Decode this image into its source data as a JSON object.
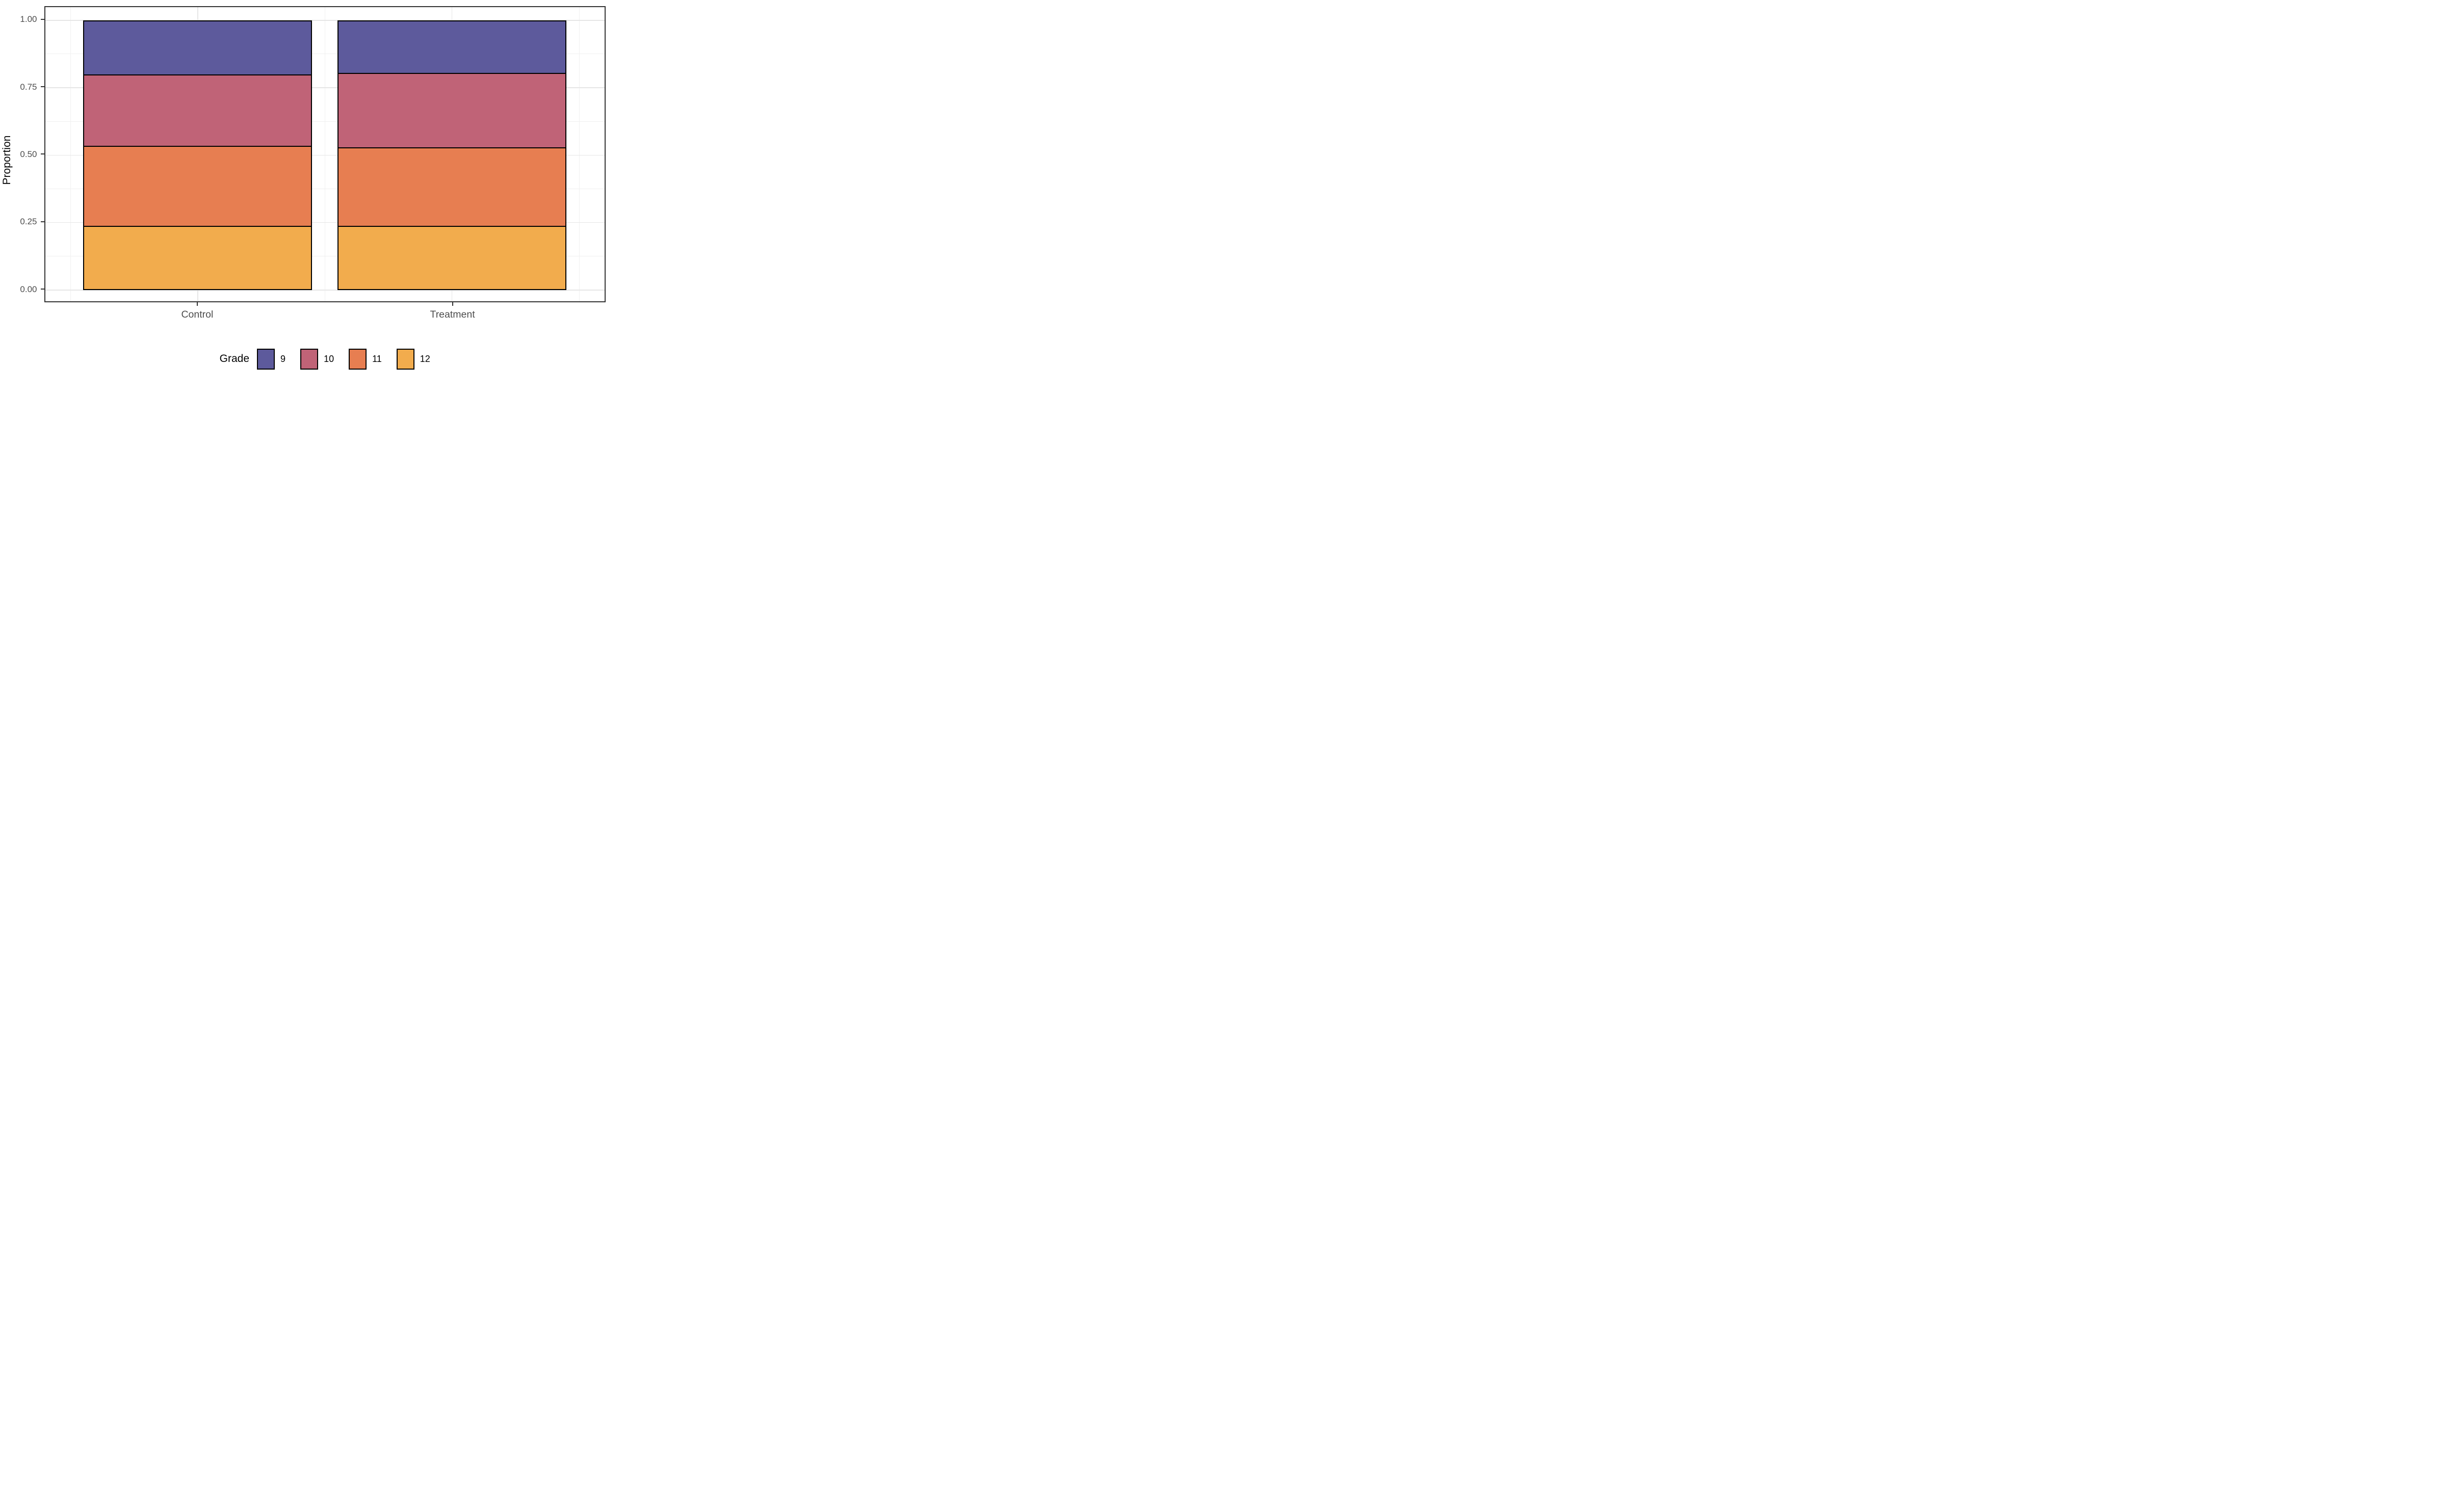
{
  "chart_data": {
    "type": "bar",
    "subtype": "stacked-proportion",
    "categories": [
      "Control",
      "Treatment"
    ],
    "series": [
      {
        "name": "9",
        "color": "#5D5A9C",
        "values": [
          0.203,
          0.197
        ]
      },
      {
        "name": "10",
        "color": "#C06377",
        "values": [
          0.264,
          0.276
        ]
      },
      {
        "name": "11",
        "color": "#E77E51",
        "values": [
          0.297,
          0.291
        ]
      },
      {
        "name": "12",
        "color": "#F2AC4D",
        "values": [
          0.236,
          0.236
        ]
      }
    ],
    "stack_order_top_to_bottom": [
      "9",
      "10",
      "11",
      "12"
    ],
    "title": "",
    "xlabel": "",
    "ylabel": "Proportion",
    "ylim": [
      0,
      1
    ],
    "y_major_ticks": [
      1.0,
      0.75,
      0.5,
      0.25,
      0.0
    ],
    "y_minor_ticks": [
      0.875,
      0.625,
      0.375,
      0.125
    ],
    "grid": "major and minor, light gray, on white panel with dark border",
    "bar_outline_color": "#000000",
    "legend_position": "bottom"
  },
  "axes": {
    "y_title": "Proportion",
    "y_tick_labels": [
      "1.00",
      "0.75",
      "0.50",
      "0.25",
      "0.00"
    ],
    "x_tick_labels": [
      "Control",
      "Treatment"
    ]
  },
  "legend": {
    "title": "Grade",
    "items": [
      {
        "label": "9",
        "color": "#5D5A9C"
      },
      {
        "label": "10",
        "color": "#C06377"
      },
      {
        "label": "11",
        "color": "#E77E51"
      },
      {
        "label": "12",
        "color": "#F2AC4D"
      }
    ]
  },
  "colors": {
    "panel_border": "#333333",
    "grid_major": "#E6E6E6",
    "grid_minor": "#F0F0F0",
    "tick_mark": "#333333",
    "tick_text": "#4D4D4D",
    "background": "#FFFFFF"
  }
}
